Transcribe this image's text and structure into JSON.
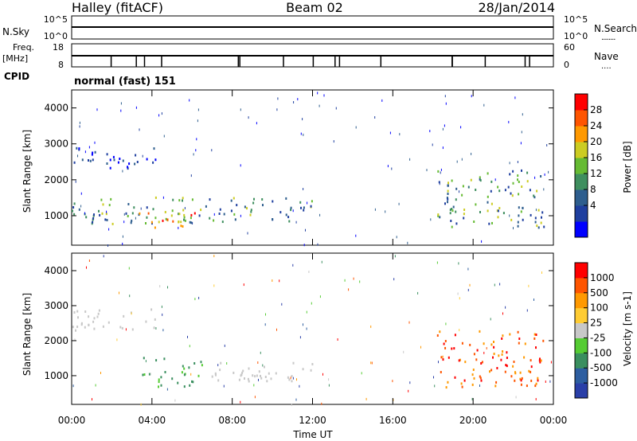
{
  "header": {
    "station": "Halley (fitACF)",
    "beam": "Beam 02",
    "date": "28/Jan/2014"
  },
  "strips": {
    "nsky_label": "N.Sky",
    "nsky_ticks": [
      "10^5",
      "10^0"
    ],
    "nsearch_label": "N.Search",
    "nsearch_ticks": [
      "10^5",
      "10^0"
    ],
    "nsearch_key": "........",
    "freq_label": "Freq.",
    "freq_unit": "[MHz]",
    "freq_ticks": [
      "18",
      "8"
    ],
    "nave_label": "Nave",
    "nave_ticks": [
      "60",
      "0"
    ],
    "nave_key": "....",
    "cpid_label": "CPID",
    "cpid_text": "normal (fast) 151"
  },
  "chart_data": [
    {
      "type": "heatmap",
      "name": "power",
      "ylabel": "Slant Range [km]",
      "yticks": [
        1000,
        2000,
        3000,
        4000
      ],
      "ylim": [
        180,
        4500
      ],
      "xlim_hours": [
        0,
        24
      ],
      "colorbar": {
        "label": "Power [dB]",
        "ticks": [
          "28",
          "24",
          "20",
          "16",
          "12",
          "8",
          "4"
        ],
        "colors": [
          "#0000ff",
          "#1f3f9f",
          "#2e5e8e",
          "#3f8f5f",
          "#66bb33",
          "#cccc22",
          "#ff9900",
          "#ff5500",
          "#ff0000"
        ]
      },
      "regions": [
        {
          "t0": 0.0,
          "t1": 4.2,
          "r0": 2300,
          "r1": 2950,
          "level": "low"
        },
        {
          "t0": 0.0,
          "t1": 12.0,
          "r0": 800,
          "r1": 1550,
          "level": "mid"
        },
        {
          "t0": 3.3,
          "t1": 6.2,
          "r0": 700,
          "r1": 1200,
          "level": "high"
        },
        {
          "t0": 18.2,
          "t1": 23.5,
          "r0": 700,
          "r1": 2300,
          "level": "mid"
        }
      ]
    },
    {
      "type": "heatmap",
      "name": "velocity",
      "ylabel": "Slant Range [km]",
      "xlabel": "Time UT",
      "xticks": [
        "00:00",
        "04:00",
        "08:00",
        "12:00",
        "16:00",
        "20:00",
        "00:00"
      ],
      "yticks": [
        1000,
        2000,
        3000,
        4000
      ],
      "ylim": [
        180,
        4500
      ],
      "xlim_hours": [
        0,
        24
      ],
      "colorbar": {
        "label": "Velocity [m s-1]",
        "ticks": [
          "1000",
          "500",
          "100",
          "25",
          "-25",
          "-100",
          "-500",
          "-1000"
        ],
        "colors": [
          "#2a3fa8",
          "#2d5ea0",
          "#3a8f5f",
          "#55cc33",
          "#c8c8c8",
          "#ffcc33",
          "#ff9900",
          "#ff5500",
          "#ff0000"
        ]
      },
      "regions": [
        {
          "t0": 0.0,
          "t1": 4.2,
          "r0": 2300,
          "r1": 2950,
          "level": "grey"
        },
        {
          "t0": 3.5,
          "t1": 6.5,
          "r0": 700,
          "r1": 1550,
          "level": "green"
        },
        {
          "t0": 6.5,
          "t1": 12.0,
          "r0": 800,
          "r1": 1400,
          "level": "grey"
        },
        {
          "t0": 18.2,
          "t1": 23.5,
          "r0": 700,
          "r1": 2300,
          "level": "orange"
        }
      ]
    }
  ]
}
